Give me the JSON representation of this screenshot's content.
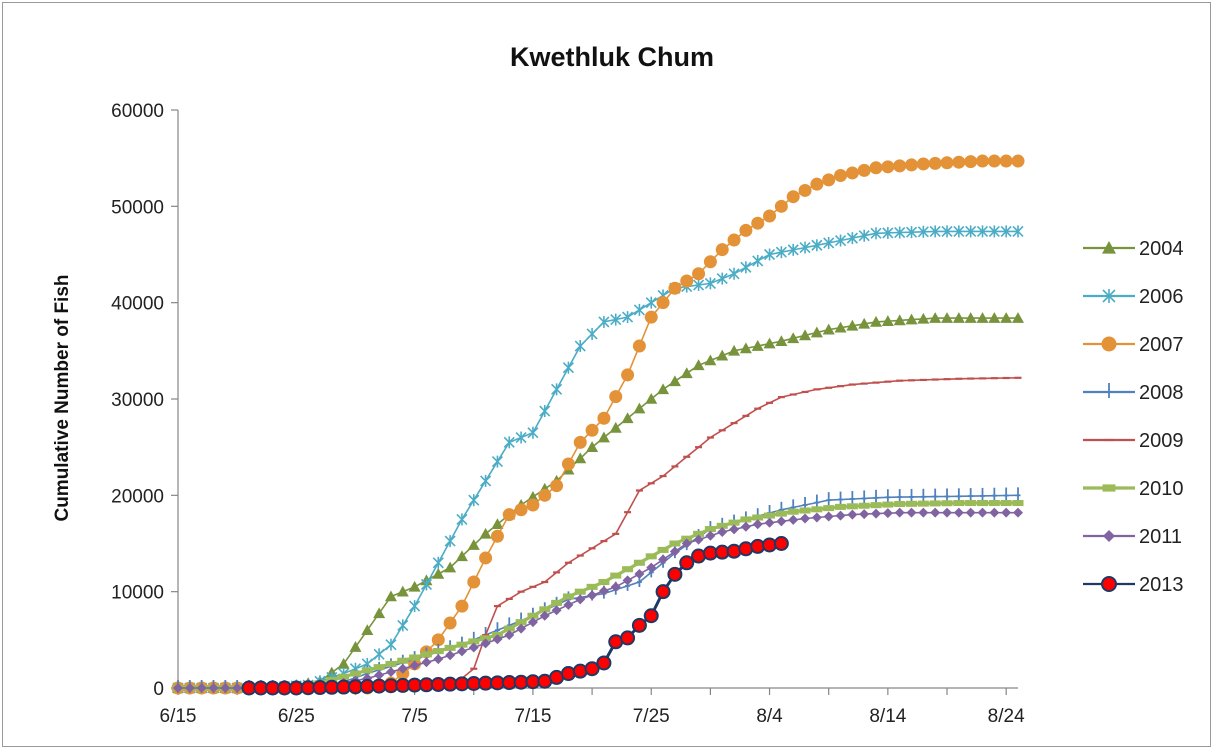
{
  "chart_data": {
    "type": "line",
    "title": "Kwethluk Chum",
    "xlabel": "",
    "ylabel": "Cumulative Number of Fish",
    "x_axis": {
      "type": "date",
      "start": "6/15",
      "end": "8/25",
      "tick_labels": [
        "6/15",
        "6/25",
        "7/5",
        "7/15",
        "7/25",
        "8/4",
        "8/14",
        "8/24"
      ]
    },
    "ylim": [
      0,
      60000
    ],
    "y_ticks": [
      "0",
      "10000",
      "20000",
      "30000",
      "40000",
      "50000",
      "60000"
    ],
    "grid": false,
    "legend": "right",
    "series": [
      {
        "name": "2004",
        "color": "#77933c",
        "marker": "triangle",
        "points": [
          [
            "6/15",
            0
          ],
          [
            "6/20",
            0
          ],
          [
            "6/24",
            100
          ],
          [
            "6/27",
            700
          ],
          [
            "6/29",
            2500
          ],
          [
            "7/1",
            6000
          ],
          [
            "7/3",
            9500
          ],
          [
            "7/5",
            10500
          ],
          [
            "7/8",
            12500
          ],
          [
            "7/11",
            16000
          ],
          [
            "7/14",
            19000
          ],
          [
            "7/17",
            21500
          ],
          [
            "7/20",
            25000
          ],
          [
            "7/23",
            28000
          ],
          [
            "7/26",
            31000
          ],
          [
            "7/29",
            33500
          ],
          [
            "8/1",
            35000
          ],
          [
            "8/5",
            36000
          ],
          [
            "8/9",
            37200
          ],
          [
            "8/13",
            38000
          ],
          [
            "8/18",
            38400
          ],
          [
            "8/25",
            38400
          ]
        ]
      },
      {
        "name": "2006",
        "color": "#4bacc6",
        "marker": "star",
        "points": [
          [
            "6/15",
            0
          ],
          [
            "6/22",
            0
          ],
          [
            "6/26",
            300
          ],
          [
            "6/29",
            1500
          ],
          [
            "7/1",
            2500
          ],
          [
            "7/3",
            4500
          ],
          [
            "7/5",
            8500
          ],
          [
            "7/7",
            13000
          ],
          [
            "7/9",
            17500
          ],
          [
            "7/11",
            21500
          ],
          [
            "7/13",
            25500
          ],
          [
            "7/15",
            26500
          ],
          [
            "7/17",
            31000
          ],
          [
            "7/19",
            35500
          ],
          [
            "7/21",
            38000
          ],
          [
            "7/23",
            38500
          ],
          [
            "7/25",
            40000
          ],
          [
            "7/27",
            41500
          ],
          [
            "7/30",
            42000
          ],
          [
            "8/1",
            43000
          ],
          [
            "8/4",
            45000
          ],
          [
            "8/9",
            46200
          ],
          [
            "8/13",
            47200
          ],
          [
            "8/18",
            47400
          ],
          [
            "8/25",
            47400
          ]
        ]
      },
      {
        "name": "2007",
        "color": "#e39238",
        "marker": "circle",
        "points": [
          [
            "6/15",
            0
          ],
          [
            "7/1",
            0
          ],
          [
            "7/3",
            500
          ],
          [
            "7/5",
            2500
          ],
          [
            "7/7",
            5000
          ],
          [
            "7/9",
            8500
          ],
          [
            "7/11",
            13500
          ],
          [
            "7/13",
            18000
          ],
          [
            "7/15",
            19000
          ],
          [
            "7/17",
            21000
          ],
          [
            "7/19",
            25500
          ],
          [
            "7/21",
            28000
          ],
          [
            "7/23",
            32500
          ],
          [
            "7/25",
            38500
          ],
          [
            "7/27",
            41500
          ],
          [
            "7/29",
            43000
          ],
          [
            "7/31",
            45500
          ],
          [
            "8/2",
            47500
          ],
          [
            "8/4",
            49000
          ],
          [
            "8/6",
            51000
          ],
          [
            "8/8",
            52300
          ],
          [
            "8/10",
            53200
          ],
          [
            "8/13",
            54000
          ],
          [
            "8/17",
            54400
          ],
          [
            "8/22",
            54700
          ],
          [
            "8/25",
            54700
          ]
        ]
      },
      {
        "name": "2008",
        "color": "#4f81bd",
        "marker": "plus",
        "points": [
          [
            "6/15",
            0
          ],
          [
            "6/25",
            0
          ],
          [
            "6/28",
            200
          ],
          [
            "7/1",
            1500
          ],
          [
            "7/5",
            3000
          ],
          [
            "7/9",
            4500
          ],
          [
            "7/12",
            6000
          ],
          [
            "7/15",
            7500
          ],
          [
            "7/18",
            9200
          ],
          [
            "7/21",
            9800
          ],
          [
            "7/24",
            11000
          ],
          [
            "7/27",
            14000
          ],
          [
            "7/30",
            16500
          ],
          [
            "8/2",
            17500
          ],
          [
            "8/5",
            18500
          ],
          [
            "8/9",
            19500
          ],
          [
            "8/14",
            19800
          ],
          [
            "8/20",
            19900
          ],
          [
            "8/25",
            20000
          ]
        ]
      },
      {
        "name": "2009",
        "color": "#c0504d",
        "marker": "dash",
        "points": [
          [
            "6/15",
            0
          ],
          [
            "7/8",
            0
          ],
          [
            "7/10",
            2000
          ],
          [
            "7/11",
            5500
          ],
          [
            "7/12",
            8500
          ],
          [
            "7/14",
            10000
          ],
          [
            "7/16",
            11000
          ],
          [
            "7/18",
            13000
          ],
          [
            "7/20",
            14500
          ],
          [
            "7/22",
            16000
          ],
          [
            "7/24",
            20500
          ],
          [
            "7/26",
            22000
          ],
          [
            "7/28",
            24000
          ],
          [
            "7/30",
            26000
          ],
          [
            "8/1",
            27500
          ],
          [
            "8/3",
            29000
          ],
          [
            "8/5",
            30200
          ],
          [
            "8/8",
            31000
          ],
          [
            "8/11",
            31500
          ],
          [
            "8/15",
            31900
          ],
          [
            "8/20",
            32100
          ],
          [
            "8/25",
            32200
          ]
        ]
      },
      {
        "name": "2010",
        "color": "#9bbb59",
        "marker": "square",
        "points": [
          [
            "6/15",
            0
          ],
          [
            "6/24",
            0
          ],
          [
            "6/27",
            500
          ],
          [
            "6/30",
            1500
          ],
          [
            "7/3",
            2500
          ],
          [
            "7/6",
            3500
          ],
          [
            "7/9",
            4500
          ],
          [
            "7/12",
            5500
          ],
          [
            "7/15",
            7500
          ],
          [
            "7/18",
            9500
          ],
          [
            "7/21",
            11000
          ],
          [
            "7/24",
            13000
          ],
          [
            "7/27",
            15000
          ],
          [
            "7/30",
            16500
          ],
          [
            "8/2",
            17500
          ],
          [
            "8/6",
            18300
          ],
          [
            "8/10",
            18800
          ],
          [
            "8/15",
            19100
          ],
          [
            "8/20",
            19200
          ],
          [
            "8/25",
            19200
          ]
        ]
      },
      {
        "name": "2011",
        "color": "#8064a2",
        "marker": "diamond",
        "points": [
          [
            "6/15",
            0
          ],
          [
            "6/25",
            0
          ],
          [
            "6/28",
            300
          ],
          [
            "7/1",
            1000
          ],
          [
            "7/4",
            2000
          ],
          [
            "7/7",
            3000
          ],
          [
            "7/10",
            4200
          ],
          [
            "7/13",
            5500
          ],
          [
            "7/16",
            7500
          ],
          [
            "7/19",
            9200
          ],
          [
            "7/22",
            10500
          ],
          [
            "7/25",
            12500
          ],
          [
            "7/28",
            15000
          ],
          [
            "7/31",
            16200
          ],
          [
            "8/3",
            17000
          ],
          [
            "8/7",
            17600
          ],
          [
            "8/11",
            18000
          ],
          [
            "8/15",
            18200
          ],
          [
            "8/20",
            18200
          ],
          [
            "8/25",
            18200
          ]
        ]
      },
      {
        "name": "2013",
        "color": "#ff0000",
        "line_color": "#1f3864",
        "marker": "circle",
        "points": [
          [
            "6/21",
            0
          ],
          [
            "6/25",
            0
          ],
          [
            "6/29",
            100
          ],
          [
            "7/2",
            200
          ],
          [
            "7/5",
            300
          ],
          [
            "7/8",
            400
          ],
          [
            "7/11",
            500
          ],
          [
            "7/14",
            600
          ],
          [
            "7/16",
            700
          ],
          [
            "7/18",
            1500
          ],
          [
            "7/20",
            2000
          ],
          [
            "7/21",
            2600
          ],
          [
            "7/22",
            4800
          ],
          [
            "7/23",
            5200
          ],
          [
            "7/24",
            6500
          ],
          [
            "7/25",
            7500
          ],
          [
            "7/26",
            10000
          ],
          [
            "7/27",
            11800
          ],
          [
            "7/28",
            13000
          ],
          [
            "7/29",
            13700
          ],
          [
            "7/30",
            14000
          ],
          [
            "8/1",
            14200
          ],
          [
            "8/3",
            14700
          ],
          [
            "8/5",
            15000
          ]
        ]
      }
    ]
  }
}
